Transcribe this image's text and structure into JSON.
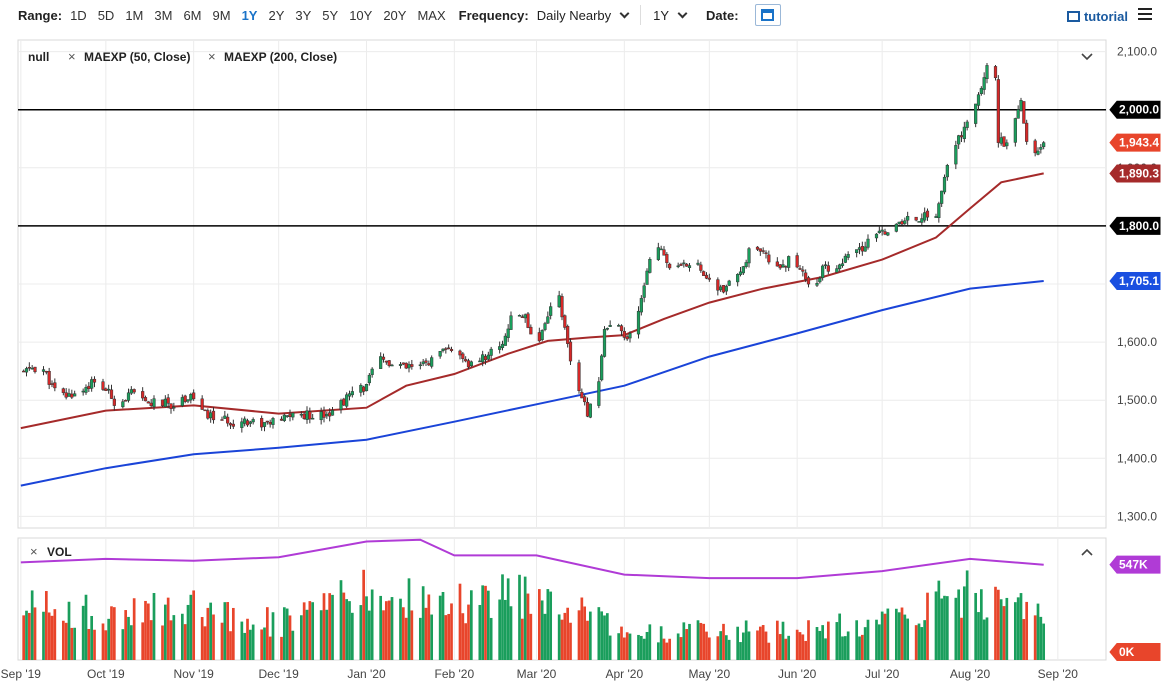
{
  "toolbar": {
    "range_label": "Range:",
    "ranges": [
      "1D",
      "5D",
      "1M",
      "3M",
      "6M",
      "9M",
      "1Y",
      "2Y",
      "3Y",
      "5Y",
      "10Y",
      "20Y",
      "MAX"
    ],
    "active_range": "1Y",
    "frequency_label": "Frequency:",
    "frequency_value": "Daily Nearby",
    "period_value": "1Y",
    "date_label": "Date:",
    "tutorial_label": "tutorial"
  },
  "chart_data": [
    {
      "type": "candlestick",
      "title": "",
      "legend": [
        "null",
        "MAEXP (50, Close)",
        "MAEXP (200, Close)"
      ],
      "ylim": [
        1280,
        2120
      ],
      "y_ticks": [
        1300,
        1400,
        1500,
        1600,
        1700,
        1800,
        1900,
        2000,
        2100
      ],
      "y_tick_labels": [
        "1,300.0",
        "1,400.0",
        "1,500.0",
        "1,600.0",
        "1,700.0",
        "1,800.0",
        "1,900.0",
        "2,000.0",
        "2,100.0"
      ],
      "x_labels": [
        "Sep '19",
        "Oct '19",
        "Nov '19",
        "Dec '19",
        "Jan '20",
        "Feb '20",
        "Mar '20",
        "Apr '20",
        "May '20",
        "Jun '20",
        "Jul '20",
        "Aug '20",
        "Sep '20"
      ],
      "x_label_dates": [
        "2019-09-01",
        "2019-10-01",
        "2019-11-01",
        "2019-12-01",
        "2020-01-01",
        "2020-02-01",
        "2020-03-01",
        "2020-04-01",
        "2020-05-01",
        "2020-06-01",
        "2020-07-01",
        "2020-08-01",
        "2020-09-01"
      ],
      "x_range": [
        "2019-08-31",
        "2020-09-18"
      ],
      "horizontal_lines": [
        {
          "value": 2000,
          "label": "2,000.0",
          "color": "#000000"
        },
        {
          "value": 1800,
          "label": "1,800.0",
          "color": "#000000"
        }
      ],
      "markers": [
        {
          "label": "1,943.4",
          "value": 1943.4,
          "color": "#e8452b"
        },
        {
          "label": "1,890.3",
          "value": 1890.3,
          "color": "#a52a2a"
        },
        {
          "label": "1,705.1",
          "value": 1705.1,
          "color": "#1a4fe0"
        }
      ],
      "price_path": [
        [
          "2019-09-01",
          1545
        ],
        [
          "2019-09-05",
          1556
        ],
        [
          "2019-09-09",
          1552
        ],
        [
          "2019-09-13",
          1515
        ],
        [
          "2019-09-17",
          1507
        ],
        [
          "2019-09-22",
          1515
        ],
        [
          "2019-09-26",
          1530
        ],
        [
          "2019-10-01",
          1518
        ],
        [
          "2019-10-05",
          1492
        ],
        [
          "2019-10-10",
          1512
        ],
        [
          "2019-10-15",
          1495
        ],
        [
          "2019-10-20",
          1496
        ],
        [
          "2019-10-25",
          1492
        ],
        [
          "2019-10-31",
          1510
        ],
        [
          "2019-11-05",
          1475
        ],
        [
          "2019-11-10",
          1468
        ],
        [
          "2019-11-14",
          1462
        ],
        [
          "2019-11-19",
          1466
        ],
        [
          "2019-11-25",
          1460
        ],
        [
          "2019-12-01",
          1462
        ],
        [
          "2019-12-05",
          1475
        ],
        [
          "2019-12-10",
          1474
        ],
        [
          "2019-12-15",
          1476
        ],
        [
          "2019-12-20",
          1481
        ],
        [
          "2019-12-26",
          1508
        ],
        [
          "2019-12-31",
          1522
        ],
        [
          "2020-01-06",
          1570
        ],
        [
          "2020-01-10",
          1560
        ],
        [
          "2020-01-15",
          1555
        ],
        [
          "2020-01-20",
          1558
        ],
        [
          "2020-01-25",
          1572
        ],
        [
          "2020-01-31",
          1590
        ],
        [
          "2020-02-05",
          1560
        ],
        [
          "2020-02-10",
          1570
        ],
        [
          "2020-02-14",
          1582
        ],
        [
          "2020-02-18",
          1600
        ],
        [
          "2020-02-22",
          1650
        ],
        [
          "2020-02-26",
          1645
        ],
        [
          "2020-03-01",
          1590
        ],
        [
          "2020-03-05",
          1650
        ],
        [
          "2020-03-09",
          1680
        ],
        [
          "2020-03-12",
          1590
        ],
        [
          "2020-03-16",
          1510
        ],
        [
          "2020-03-19",
          1480
        ],
        [
          "2020-03-22",
          1500
        ],
        [
          "2020-03-25",
          1620
        ],
        [
          "2020-03-29",
          1630
        ],
        [
          "2020-04-02",
          1600
        ],
        [
          "2020-04-06",
          1650
        ],
        [
          "2020-04-10",
          1750
        ],
        [
          "2020-04-14",
          1760
        ],
        [
          "2020-04-18",
          1720
        ],
        [
          "2020-04-22",
          1730
        ],
        [
          "2020-04-27",
          1740
        ],
        [
          "2020-05-01",
          1700
        ],
        [
          "2020-05-06",
          1690
        ],
        [
          "2020-05-11",
          1710
        ],
        [
          "2020-05-15",
          1755
        ],
        [
          "2020-05-20",
          1750
        ],
        [
          "2020-05-25",
          1730
        ],
        [
          "2020-05-29",
          1740
        ],
        [
          "2020-06-03",
          1725
        ],
        [
          "2020-06-06",
          1685
        ],
        [
          "2020-06-10",
          1725
        ],
        [
          "2020-06-15",
          1730
        ],
        [
          "2020-06-20",
          1750
        ],
        [
          "2020-06-25",
          1765
        ],
        [
          "2020-06-30",
          1790
        ],
        [
          "2020-07-05",
          1795
        ],
        [
          "2020-07-10",
          1810
        ],
        [
          "2020-07-15",
          1815
        ],
        [
          "2020-07-20",
          1820
        ],
        [
          "2020-07-24",
          1900
        ],
        [
          "2020-07-28",
          1950
        ],
        [
          "2020-08-01",
          1985
        ],
        [
          "2020-08-04",
          2020
        ],
        [
          "2020-08-07",
          2080
        ],
        [
          "2020-08-10",
          2050
        ],
        [
          "2020-08-11",
          1950
        ],
        [
          "2020-08-13",
          1940
        ],
        [
          "2020-08-16",
          1960
        ],
        [
          "2020-08-18",
          1995
        ],
        [
          "2020-08-19",
          2010
        ],
        [
          "2020-08-21",
          1945
        ],
        [
          "2020-08-25",
          1930
        ],
        [
          "2020-08-27",
          1943.4
        ]
      ],
      "maexp_50": [
        [
          "2019-09-01",
          1452
        ],
        [
          "2019-10-01",
          1482
        ],
        [
          "2019-11-01",
          1491
        ],
        [
          "2019-12-01",
          1477
        ],
        [
          "2020-01-01",
          1487
        ],
        [
          "2020-01-15",
          1525
        ],
        [
          "2020-02-01",
          1545
        ],
        [
          "2020-02-20",
          1580
        ],
        [
          "2020-03-05",
          1602
        ],
        [
          "2020-03-20",
          1608
        ],
        [
          "2020-04-01",
          1612
        ],
        [
          "2020-04-15",
          1640
        ],
        [
          "2020-05-01",
          1668
        ],
        [
          "2020-05-20",
          1692
        ],
        [
          "2020-06-10",
          1712
        ],
        [
          "2020-07-01",
          1742
        ],
        [
          "2020-07-20",
          1780
        ],
        [
          "2020-08-01",
          1830
        ],
        [
          "2020-08-12",
          1875
        ],
        [
          "2020-08-27",
          1890.3
        ]
      ],
      "maexp_200": [
        [
          "2019-09-01",
          1353
        ],
        [
          "2019-10-01",
          1383
        ],
        [
          "2019-11-01",
          1407
        ],
        [
          "2019-12-01",
          1418
        ],
        [
          "2020-01-01",
          1432
        ],
        [
          "2020-02-01",
          1463
        ],
        [
          "2020-03-01",
          1493
        ],
        [
          "2020-04-01",
          1525
        ],
        [
          "2020-05-01",
          1575
        ],
        [
          "2020-06-01",
          1615
        ],
        [
          "2020-07-01",
          1655
        ],
        [
          "2020-08-01",
          1692
        ],
        [
          "2020-08-27",
          1705.1
        ]
      ]
    },
    {
      "type": "bar",
      "title": "VOL",
      "ylim": [
        0,
        700000
      ],
      "y_tick_labels": [
        "0K",
        "547K"
      ],
      "markers": [
        {
          "label": "547K",
          "value": 547000,
          "color": "#b03bd6"
        },
        {
          "label": "0K",
          "value": 0,
          "color": "#e8452b"
        }
      ],
      "up_color": "#1a9e5c",
      "down_color": "#e8452b",
      "avg_color": "#b03bd6",
      "volume_path": [
        [
          "2019-09-01",
          330
        ],
        [
          "2019-10-01",
          250
        ],
        [
          "2019-11-01",
          320
        ],
        [
          "2019-12-01",
          210
        ],
        [
          "2020-01-01",
          380
        ],
        [
          "2020-02-01",
          310
        ],
        [
          "2020-03-01",
          400
        ],
        [
          "2020-04-01",
          150
        ],
        [
          "2020-05-01",
          170
        ],
        [
          "2020-06-01",
          160
        ],
        [
          "2020-07-01",
          230
        ],
        [
          "2020-08-01",
          380
        ],
        [
          "2020-08-27",
          300
        ]
      ],
      "avg_path": [
        [
          "2019-09-01",
          560
        ],
        [
          "2019-10-01",
          580
        ],
        [
          "2019-11-01",
          570
        ],
        [
          "2019-12-01",
          590
        ],
        [
          "2020-01-01",
          680
        ],
        [
          "2020-01-20",
          690
        ],
        [
          "2020-02-01",
          600
        ],
        [
          "2020-03-01",
          600
        ],
        [
          "2020-04-01",
          490
        ],
        [
          "2020-05-01",
          470
        ],
        [
          "2020-06-01",
          470
        ],
        [
          "2020-07-01",
          510
        ],
        [
          "2020-08-01",
          580
        ],
        [
          "2020-08-27",
          547
        ]
      ]
    }
  ]
}
